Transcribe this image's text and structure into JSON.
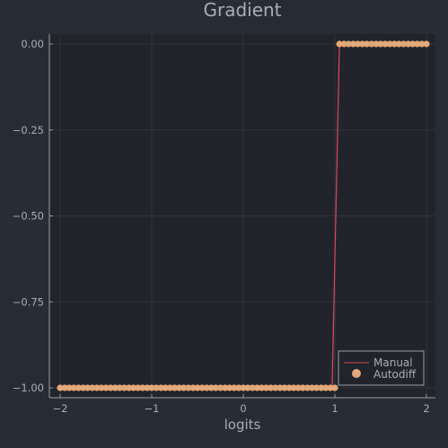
{
  "chart_data": {
    "type": "line",
    "title": "Gradient",
    "xlabel": "logits",
    "ylabel": "",
    "xlim": [
      -2.0,
      2.0
    ],
    "ylim": [
      -1.0,
      0.0
    ],
    "xticks": [
      -2,
      -1,
      0,
      1,
      2
    ],
    "xtick_labels": [
      "−2",
      "−1",
      "0",
      "1",
      "2"
    ],
    "yticks": [
      0.0,
      -0.25,
      -0.5,
      -0.75,
      -1.0
    ],
    "ytick_labels": [
      "0.00",
      "−0.25",
      "−0.50",
      "−0.75",
      "−1.00"
    ],
    "grid": true,
    "legend_position": "bottom-right",
    "series": [
      {
        "name": "Manual",
        "kind": "line",
        "color": "#e0475b",
        "x": [
          -2.0,
          -1.0,
          0.0,
          0.97,
          1.05,
          2.0
        ],
        "y": [
          -1.0,
          -1.0,
          -1.0,
          -1.0,
          0.0,
          0.0
        ]
      },
      {
        "name": "Autodiff",
        "kind": "scatter",
        "color": "#e3a878",
        "x": [
          -2.0,
          -1.95,
          -1.9,
          -1.85,
          -1.8,
          -1.75,
          -1.7,
          -1.65,
          -1.6,
          -1.55,
          -1.5,
          -1.45,
          -1.4,
          -1.35,
          -1.3,
          -1.25,
          -1.2,
          -1.15,
          -1.1,
          -1.05,
          -1.0,
          -0.95,
          -0.9,
          -0.85,
          -0.8,
          -0.75,
          -0.7,
          -0.65,
          -0.6,
          -0.55,
          -0.5,
          -0.45,
          -0.4,
          -0.35,
          -0.3,
          -0.25,
          -0.2,
          -0.15,
          -0.1,
          -0.05,
          0.0,
          0.05,
          0.1,
          0.15,
          0.2,
          0.25,
          0.3,
          0.35,
          0.4,
          0.45,
          0.5,
          0.55,
          0.6,
          0.65,
          0.7,
          0.75,
          0.8,
          0.85,
          0.9,
          0.95,
          1.0,
          1.05,
          1.1,
          1.15,
          1.2,
          1.25,
          1.3,
          1.35,
          1.4,
          1.45,
          1.5,
          1.55,
          1.6,
          1.65,
          1.7,
          1.75,
          1.8,
          1.85,
          1.9,
          1.95,
          2.0
        ],
        "y": [
          -1.0,
          -1.0,
          -1.0,
          -1.0,
          -1.0,
          -1.0,
          -1.0,
          -1.0,
          -1.0,
          -1.0,
          -1.0,
          -1.0,
          -1.0,
          -1.0,
          -1.0,
          -1.0,
          -1.0,
          -1.0,
          -1.0,
          -1.0,
          -1.0,
          -1.0,
          -1.0,
          -1.0,
          -1.0,
          -1.0,
          -1.0,
          -1.0,
          -1.0,
          -1.0,
          -1.0,
          -1.0,
          -1.0,
          -1.0,
          -1.0,
          -1.0,
          -1.0,
          -1.0,
          -1.0,
          -1.0,
          -1.0,
          -1.0,
          -1.0,
          -1.0,
          -1.0,
          -1.0,
          -1.0,
          -1.0,
          -1.0,
          -1.0,
          -1.0,
          -1.0,
          -1.0,
          -1.0,
          -1.0,
          -1.0,
          -1.0,
          -1.0,
          -1.0,
          -1.0,
          -1.0,
          0.0,
          0.0,
          0.0,
          0.0,
          0.0,
          0.0,
          0.0,
          0.0,
          0.0,
          0.0,
          0.0,
          0.0,
          0.0,
          0.0,
          0.0,
          0.0,
          0.0,
          0.0,
          0.0,
          0.0
        ]
      }
    ]
  },
  "colors": {
    "background": "#282c34",
    "plot_background": "#21252b",
    "grid": "#30343b",
    "axis": "#9a9ea6",
    "text": "#a9adb5"
  }
}
